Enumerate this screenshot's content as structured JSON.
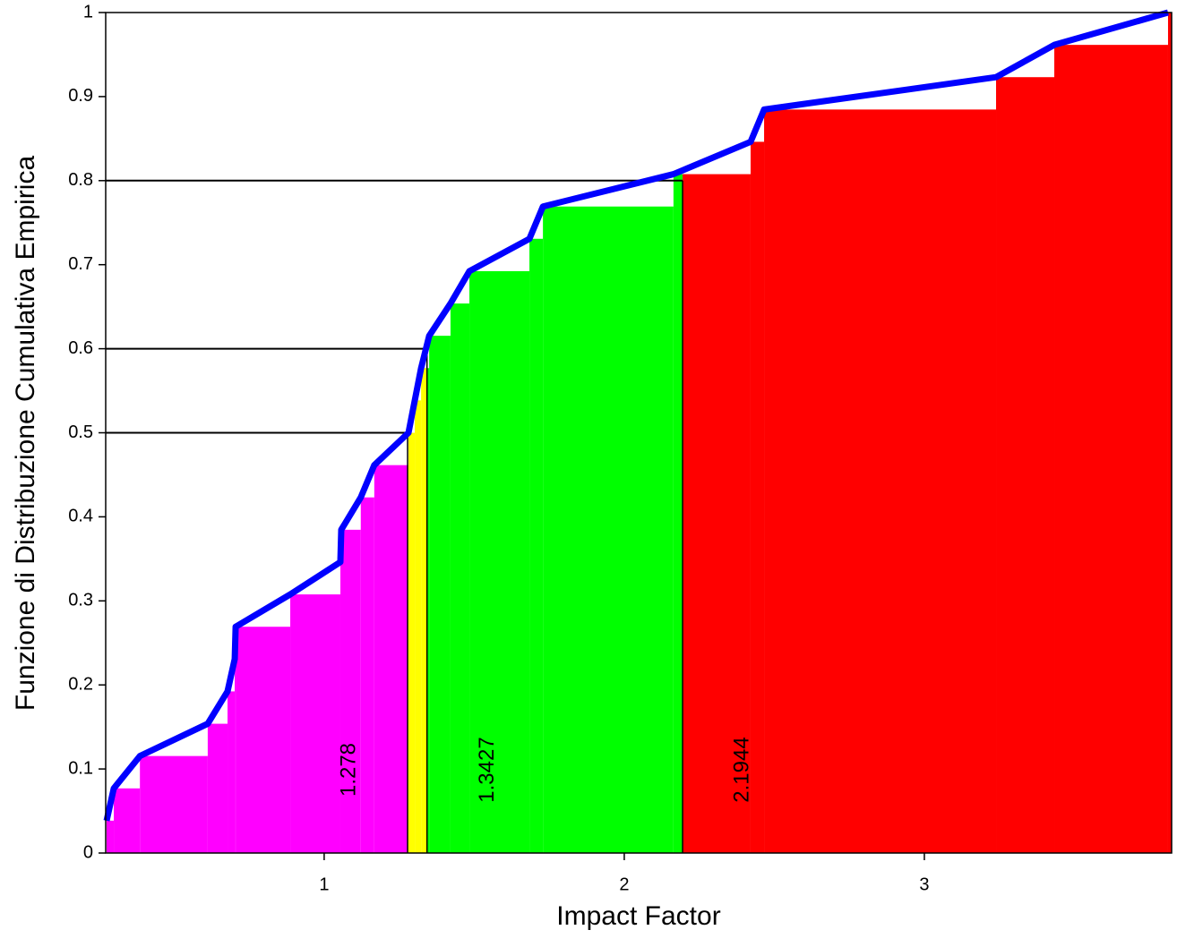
{
  "chart_data": {
    "type": "ecdf",
    "xlabel": "Impact Factor",
    "ylabel": "Funzione di Distribuzione Cumulativa Empirica",
    "xlim": [
      0.272,
      3.824
    ],
    "ylim": [
      0,
      1
    ],
    "xticks": [
      1,
      2,
      3
    ],
    "yticks": [
      0,
      0.1,
      0.2,
      0.3,
      0.4,
      0.5,
      0.6,
      0.7,
      0.8,
      0.9,
      1
    ],
    "line_color": "#0000ff",
    "x": [
      0.275,
      0.299,
      0.386,
      0.612,
      0.678,
      0.702,
      0.705,
      0.887,
      1.054,
      1.057,
      1.122,
      1.167,
      1.281,
      1.302,
      1.323,
      1.35,
      1.421,
      1.484,
      1.684,
      1.729,
      2.164,
      2.421,
      2.466,
      3.239,
      3.433,
      3.812
    ],
    "values": [
      0.0385,
      0.0769,
      0.1154,
      0.1538,
      0.1923,
      0.2308,
      0.2692,
      0.3077,
      0.3462,
      0.3846,
      0.4231,
      0.4615,
      0.5,
      0.5385,
      0.5769,
      0.6154,
      0.6538,
      0.6923,
      0.7308,
      0.7692,
      0.8077,
      0.8462,
      0.8846,
      0.9231,
      0.9615,
      1.0
    ],
    "quantiles": [
      {
        "p": 0.5,
        "value": 1.278
      },
      {
        "p": 0.6,
        "value": 1.3427
      },
      {
        "p": 0.8,
        "value": 2.1944
      }
    ],
    "region_colors": [
      "#ff00ff",
      "#ffff00",
      "#00ff00",
      "#ff0000"
    ]
  }
}
